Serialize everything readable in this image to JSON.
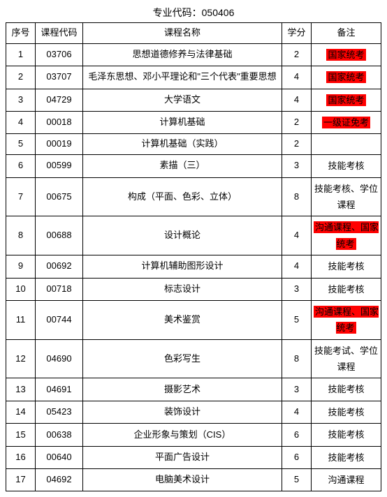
{
  "page_header": "专业代码：050406",
  "columns": {
    "seq": "序号",
    "code": "课程代码",
    "name": "课程名称",
    "credit": "学分",
    "remark": "备注"
  },
  "rows": [
    {
      "seq": "1",
      "code": "03706",
      "name": "思想道德修养与法律基础",
      "credit": "2",
      "remark": "国家统考",
      "highlight": true
    },
    {
      "seq": "2",
      "code": "03707",
      "name": "毛泽东思想、邓小平理论和\"三个代表\"重要思想",
      "credit": "4",
      "remark": "国家统考",
      "highlight": true
    },
    {
      "seq": "3",
      "code": "04729",
      "name": "大学语文",
      "credit": "4",
      "remark": "国家统考",
      "highlight": true
    },
    {
      "seq": "4",
      "code": "00018",
      "name": "计算机基础",
      "credit": "2",
      "remark": "一级证免考",
      "highlight": true
    },
    {
      "seq": "5",
      "code": "00019",
      "name": "计算机基础（实践）",
      "credit": "2",
      "remark": "",
      "highlight": false
    },
    {
      "seq": "6",
      "code": "00599",
      "name": "素描（三）",
      "credit": "3",
      "remark": "技能考核",
      "highlight": false
    },
    {
      "seq": "7",
      "code": "00675",
      "name": "构成（平面、色彩、立体）",
      "credit": "8",
      "remark": "技能考核、学位课程",
      "highlight": false
    },
    {
      "seq": "8",
      "code": "00688",
      "name": "设计概论",
      "credit": "4",
      "remark": "沟通课程、国家统考",
      "highlight": true
    },
    {
      "seq": "9",
      "code": "00692",
      "name": "计算机辅助图形设计",
      "credit": "4",
      "remark": "技能考核",
      "highlight": false
    },
    {
      "seq": "10",
      "code": "00718",
      "name": "标志设计",
      "credit": "3",
      "remark": "技能考核",
      "highlight": false
    },
    {
      "seq": "11",
      "code": "00744",
      "name": "美术鉴赏",
      "credit": "5",
      "remark": "沟通课程、国家统考",
      "highlight": true
    },
    {
      "seq": "12",
      "code": "04690",
      "name": "色彩写生",
      "credit": "8",
      "remark": "技能考试、学位课程",
      "highlight": false
    },
    {
      "seq": "13",
      "code": "04691",
      "name": "摄影艺术",
      "credit": "3",
      "remark": "技能考核",
      "highlight": false
    },
    {
      "seq": "14",
      "code": "05423",
      "name": "装饰设计",
      "credit": "4",
      "remark": "技能考核",
      "highlight": false
    },
    {
      "seq": "15",
      "code": "00638",
      "name": "企业形象与策划（CIS）",
      "credit": "6",
      "remark": "技能考核",
      "highlight": false
    },
    {
      "seq": "16",
      "code": "00640",
      "name": "平面广告设计",
      "credit": "6",
      "remark": "技能考核",
      "highlight": false
    },
    {
      "seq": "17",
      "code": "04692",
      "name": "电脑美术设计",
      "credit": "5",
      "remark": "沟通课程",
      "highlight": false
    }
  ]
}
